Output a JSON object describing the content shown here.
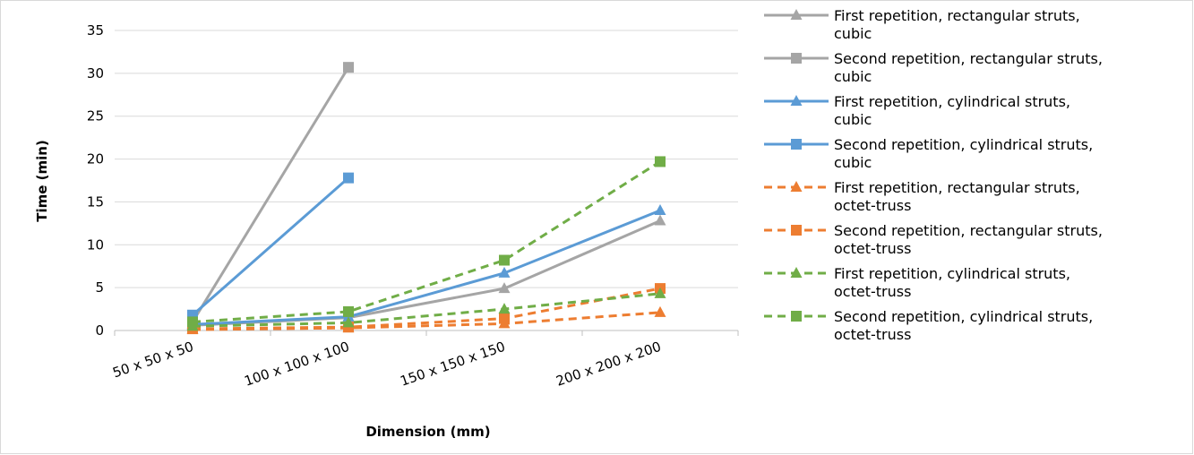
{
  "chart_data": {
    "type": "line",
    "title": "",
    "xlabel": "Dimension (mm)",
    "ylabel": "Time (min)",
    "categories": [
      "50 x 50 x 50",
      "100 x 100 x 100",
      "150 x 150 x 150",
      "200 x 200 x 200"
    ],
    "ylim": [
      0,
      35
    ],
    "yticks": [
      0,
      5,
      10,
      15,
      20,
      25,
      30,
      35
    ],
    "grid": true,
    "legend_position": "right",
    "series": [
      {
        "name_lines": [
          "First repetition, rectangular struts,",
          "cubic"
        ],
        "color": "#a5a5a5",
        "dash": "solid",
        "marker": "triangle",
        "values": [
          0.6,
          1.5,
          4.9,
          12.8
        ]
      },
      {
        "name_lines": [
          "Second repetition, rectangular struts,",
          "cubic"
        ],
        "color": "#a5a5a5",
        "dash": "solid",
        "marker": "square",
        "values": [
          1.0,
          30.7,
          null,
          null
        ]
      },
      {
        "name_lines": [
          "First repetition, cylindrical struts,",
          "cubic"
        ],
        "color": "#5b9bd5",
        "dash": "solid",
        "marker": "triangle",
        "values": [
          0.7,
          1.6,
          6.7,
          14.0
        ]
      },
      {
        "name_lines": [
          "Second repetition, cylindrical struts,",
          "cubic"
        ],
        "color": "#5b9bd5",
        "dash": "solid",
        "marker": "square",
        "values": [
          1.8,
          17.8,
          null,
          null
        ]
      },
      {
        "name_lines": [
          "First repetition, rectangular struts,",
          "octet-truss"
        ],
        "color": "#ed7d31",
        "dash": "dashed",
        "marker": "triangle",
        "values": [
          0.1,
          0.3,
          0.8,
          2.1
        ]
      },
      {
        "name_lines": [
          "Second repetition, rectangular struts,",
          "octet-truss"
        ],
        "color": "#ed7d31",
        "dash": "dashed",
        "marker": "square",
        "values": [
          0.2,
          0.4,
          1.4,
          4.9
        ]
      },
      {
        "name_lines": [
          "First repetition, cylindrical struts,",
          "octet-truss"
        ],
        "color": "#70ad47",
        "dash": "dashed",
        "marker": "triangle",
        "values": [
          0.5,
          0.9,
          2.5,
          4.3
        ]
      },
      {
        "name_lines": [
          "Second repetition, cylindrical struts,",
          "octet-truss"
        ],
        "color": "#70ad47",
        "dash": "dashed",
        "marker": "square",
        "values": [
          1.0,
          2.2,
          8.2,
          19.7
        ]
      }
    ]
  }
}
